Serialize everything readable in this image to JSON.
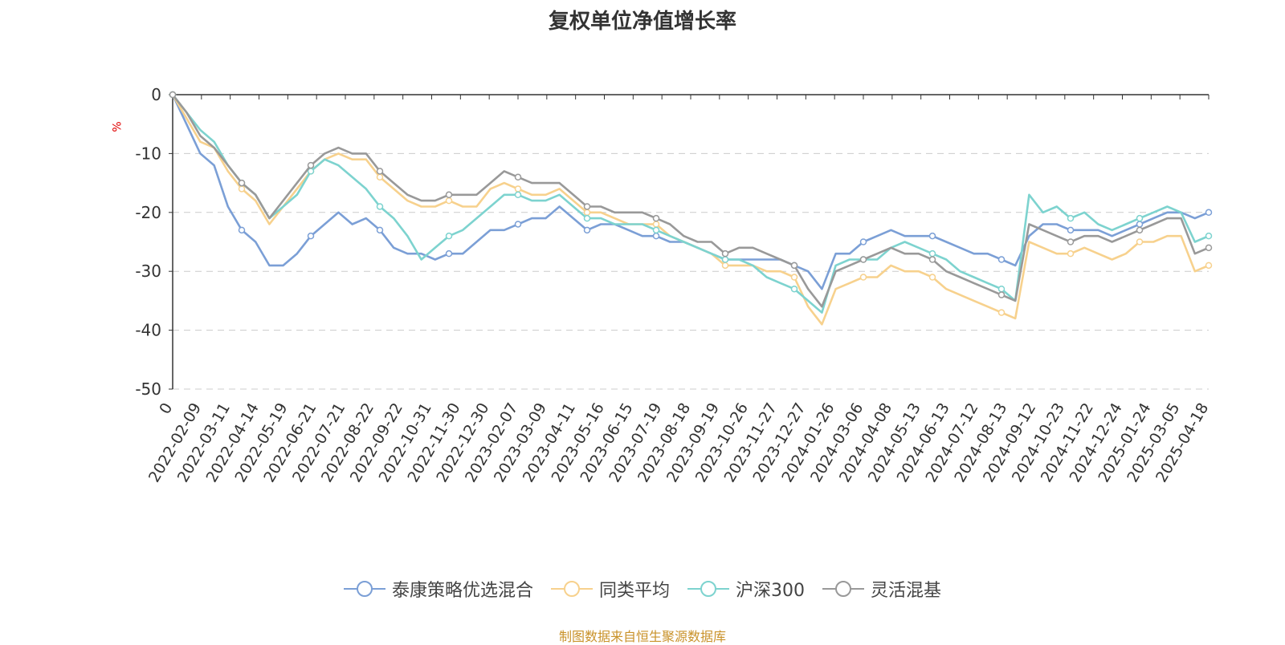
{
  "chart_data": {
    "type": "line",
    "title": "复权单位净值增长率",
    "ylabel": "%",
    "ylim": [
      -50,
      0
    ],
    "yticks": [
      0,
      -10,
      -20,
      -30,
      -40,
      -50
    ],
    "grid": true,
    "legend_position": "bottom",
    "x_tick_labels": [
      "0",
      "2022-02-09",
      "2022-03-11",
      "2022-04-14",
      "2022-05-19",
      "2022-06-21",
      "2022-07-21",
      "2022-08-22",
      "2022-09-22",
      "2022-10-31",
      "2022-11-30",
      "2022-12-30",
      "2023-02-07",
      "2023-03-09",
      "2023-04-11",
      "2023-05-16",
      "2023-06-15",
      "2023-07-19",
      "2023-08-18",
      "2023-09-19",
      "2023-10-26",
      "2023-11-27",
      "2023-12-27",
      "2024-01-26",
      "2024-03-06",
      "2024-04-08",
      "2024-05-13",
      "2024-06-13",
      "2024-07-12",
      "2024-08-13",
      "2024-09-12",
      "2024-10-23",
      "2024-11-22",
      "2024-12-24",
      "2025-01-24",
      "2025-03-05",
      "2025-04-18"
    ],
    "x": [
      "0",
      "2022-01-25",
      "2022-02-09",
      "2022-02-24",
      "2022-03-11",
      "2022-03-28",
      "2022-04-14",
      "2022-04-29",
      "2022-05-19",
      "2022-06-06",
      "2022-06-21",
      "2022-07-06",
      "2022-07-21",
      "2022-08-05",
      "2022-08-22",
      "2022-09-06",
      "2022-09-22",
      "2022-10-14",
      "2022-10-31",
      "2022-11-15",
      "2022-11-30",
      "2022-12-15",
      "2022-12-30",
      "2023-01-17",
      "2023-02-07",
      "2023-02-22",
      "2023-03-09",
      "2023-03-24",
      "2023-04-11",
      "2023-04-26",
      "2023-05-16",
      "2023-05-31",
      "2023-06-15",
      "2023-07-04",
      "2023-07-19",
      "2023-08-03",
      "2023-08-18",
      "2023-09-04",
      "2023-09-19",
      "2023-10-11",
      "2023-10-26",
      "2023-11-10",
      "2023-11-27",
      "2023-12-12",
      "2023-12-27",
      "2024-01-11",
      "2024-01-26",
      "2024-02-08",
      "2024-03-06",
      "2024-03-21",
      "2024-04-08",
      "2024-04-23",
      "2024-05-13",
      "2024-05-28",
      "2024-06-13",
      "2024-06-27",
      "2024-07-12",
      "2024-07-29",
      "2024-08-13",
      "2024-08-28",
      "2024-09-12",
      "2024-09-27",
      "2024-10-08",
      "2024-10-23",
      "2024-11-07",
      "2024-11-22",
      "2024-12-09",
      "2024-12-24",
      "2025-01-09",
      "2025-01-24",
      "2025-02-17",
      "2025-03-05",
      "2025-03-20",
      "2025-04-03",
      "2025-04-10",
      "2025-04-18"
    ],
    "series": [
      {
        "name": "泰康策略优选混合",
        "color": "#7b9fd6",
        "values": [
          0,
          -5,
          -10,
          -12,
          -19,
          -23,
          -25,
          -29,
          -29,
          -27,
          -24,
          -22,
          -20,
          -22,
          -21,
          -23,
          -26,
          -27,
          -27,
          -28,
          -27,
          -27,
          -25,
          -23,
          -23,
          -22,
          -21,
          -21,
          -19,
          -21,
          -23,
          -22,
          -22,
          -23,
          -24,
          -24,
          -25,
          -25,
          -26,
          -27,
          -28,
          -28,
          -28,
          -28,
          -28,
          -29,
          -30,
          -33,
          -27,
          -27,
          -25,
          -24,
          -23,
          -24,
          -24,
          -24,
          -25,
          -26,
          -27,
          -27,
          -28,
          -29,
          -24,
          -22,
          -22,
          -23,
          -23,
          -23,
          -24,
          -23,
          -22,
          -21,
          -20,
          -20,
          -21,
          -20
        ]
      },
      {
        "name": "同类平均",
        "color": "#f7d18d",
        "values": [
          0,
          -4,
          -8,
          -9,
          -13,
          -16,
          -18,
          -22,
          -19,
          -16,
          -13,
          -11,
          -10,
          -11,
          -11,
          -14,
          -16,
          -18,
          -19,
          -19,
          -18,
          -19,
          -19,
          -16,
          -15,
          -16,
          -17,
          -17,
          -16,
          -18,
          -20,
          -20,
          -21,
          -22,
          -22,
          -22,
          -24,
          -25,
          -26,
          -27,
          -29,
          -29,
          -29,
          -30,
          -30,
          -31,
          -36,
          -39,
          -33,
          -32,
          -31,
          -31,
          -29,
          -30,
          -30,
          -31,
          -33,
          -34,
          -35,
          -36,
          -37,
          -38,
          -25,
          -26,
          -27,
          -27,
          -26,
          -27,
          -28,
          -27,
          -25,
          -25,
          -24,
          -24,
          -30,
          -29
        ]
      },
      {
        "name": "沪深300",
        "color": "#7dd3cf",
        "values": [
          0,
          -3,
          -6,
          -8,
          -12,
          -15,
          -17,
          -21,
          -19,
          -17,
          -13,
          -11,
          -12,
          -14,
          -16,
          -19,
          -21,
          -24,
          -28,
          -26,
          -24,
          -23,
          -21,
          -19,
          -17,
          -17,
          -18,
          -18,
          -17,
          -19,
          -21,
          -21,
          -22,
          -22,
          -22,
          -23,
          -24,
          -25,
          -26,
          -27,
          -28,
          -28,
          -29,
          -31,
          -32,
          -33,
          -35,
          -37,
          -29,
          -28,
          -28,
          -28,
          -26,
          -25,
          -26,
          -27,
          -28,
          -30,
          -31,
          -32,
          -33,
          -35,
          -17,
          -20,
          -19,
          -21,
          -20,
          -22,
          -23,
          -22,
          -21,
          -20,
          -19,
          -20,
          -25,
          -24
        ]
      },
      {
        "name": "灵活混基",
        "color": "#999999",
        "values": [
          0,
          -3,
          -7,
          -9,
          -12,
          -15,
          -17,
          -21,
          -18,
          -15,
          -12,
          -10,
          -9,
          -10,
          -10,
          -13,
          -15,
          -17,
          -18,
          -18,
          -17,
          -17,
          -17,
          -15,
          -13,
          -14,
          -15,
          -15,
          -15,
          -17,
          -19,
          -19,
          -20,
          -20,
          -20,
          -21,
          -22,
          -24,
          -25,
          -25,
          -27,
          -26,
          -26,
          -27,
          -28,
          -29,
          -33,
          -36,
          -30,
          -29,
          -28,
          -27,
          -26,
          -27,
          -27,
          -28,
          -30,
          -31,
          -32,
          -33,
          -34,
          -35,
          -22,
          -23,
          -24,
          -25,
          -24,
          -24,
          -25,
          -24,
          -23,
          -22,
          -21,
          -21,
          -27,
          -26
        ]
      }
    ]
  },
  "source_text": "制图数据来自恒生聚源数据库"
}
